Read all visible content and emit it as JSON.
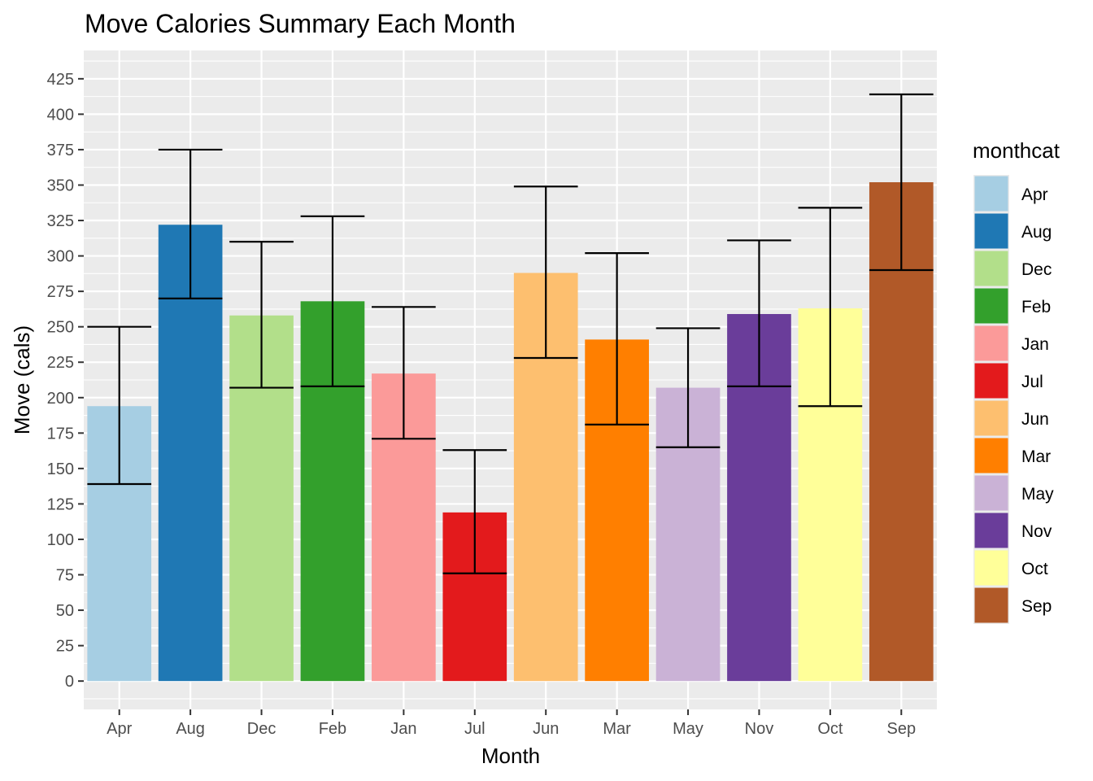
{
  "chart_data": {
    "type": "bar",
    "title": "Move Calories Summary Each Month",
    "xlabel": "Month",
    "ylabel": "Move (cals)",
    "ylim": [
      -20,
      425
    ],
    "yticks": [
      0,
      25,
      50,
      75,
      100,
      125,
      150,
      175,
      200,
      225,
      250,
      275,
      300,
      325,
      350,
      375,
      400,
      425
    ],
    "grid": true,
    "legend": {
      "title": "monthcat",
      "position": "right"
    },
    "categories": [
      "Apr",
      "Aug",
      "Dec",
      "Feb",
      "Jan",
      "Jul",
      "Jun",
      "Mar",
      "May",
      "Nov",
      "Oct",
      "Sep"
    ],
    "values": [
      194,
      322,
      258,
      268,
      217,
      119,
      288,
      241,
      207,
      259,
      263,
      352
    ],
    "error_low": [
      139,
      270,
      207,
      208,
      171,
      76,
      228,
      181,
      165,
      208,
      194,
      290
    ],
    "error_high": [
      250,
      375,
      310,
      328,
      264,
      163,
      349,
      302,
      249,
      311,
      334,
      414
    ],
    "colors": [
      "#A6CEE3",
      "#1F78B4",
      "#B2DF8A",
      "#33A02C",
      "#FB9A99",
      "#E31A1C",
      "#FDBF6F",
      "#FF7F00",
      "#CAB2D6",
      "#6A3D9A",
      "#FFFF99",
      "#B15928"
    ],
    "legend_entries": [
      "Apr",
      "Aug",
      "Dec",
      "Feb",
      "Jan",
      "Jul",
      "Jun",
      "Mar",
      "May",
      "Nov",
      "Oct",
      "Sep"
    ]
  }
}
